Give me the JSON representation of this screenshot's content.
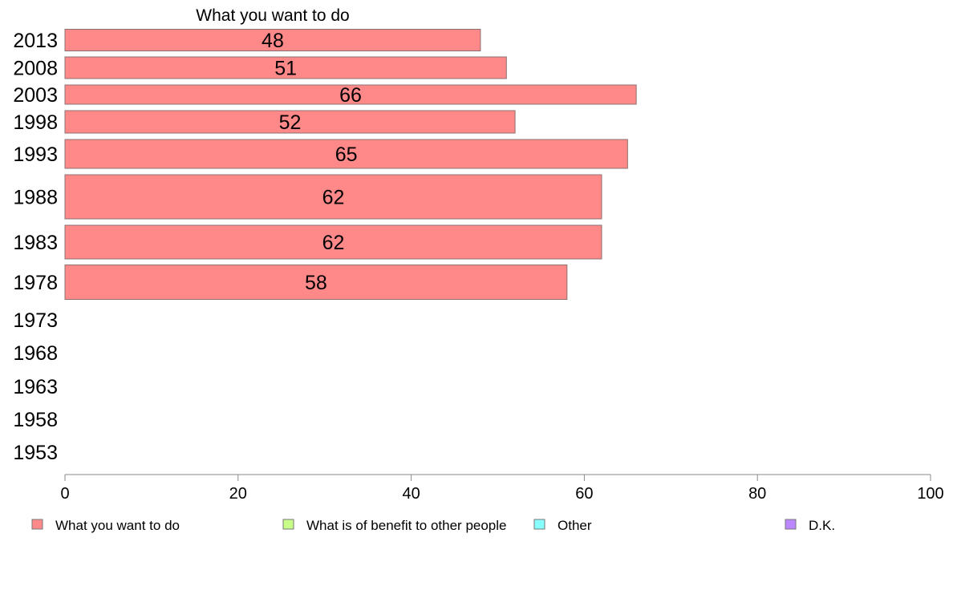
{
  "chart_data": {
    "type": "bar",
    "orientation": "horizontal",
    "title": "What you want to do",
    "categories": [
      "2013",
      "2008",
      "2003",
      "1998",
      "1993",
      "1988",
      "1983",
      "1978",
      "1973",
      "1968",
      "1963",
      "1958",
      "1953"
    ],
    "series": [
      {
        "name": "What you want to do",
        "color": "#ff8888",
        "values": [
          48,
          51,
          66,
          52,
          65,
          62,
          62,
          58,
          null,
          null,
          null,
          null,
          null
        ]
      },
      {
        "name": "What is of benefit to other people",
        "color": "#c8ff88",
        "values": [
          null,
          null,
          null,
          null,
          null,
          null,
          null,
          null,
          null,
          null,
          null,
          null,
          null
        ]
      },
      {
        "name": "Other",
        "color": "#88ffff",
        "values": [
          null,
          null,
          null,
          null,
          null,
          null,
          null,
          null,
          null,
          null,
          null,
          null,
          null
        ]
      },
      {
        "name": "D.K.",
        "color": "#bb88ff",
        "values": [
          null,
          null,
          null,
          null,
          null,
          null,
          null,
          null,
          null,
          null,
          null,
          null,
          null
        ]
      }
    ],
    "data_labels": [
      "48",
      "51",
      "66",
      "52",
      "65",
      "62",
      "62",
      "58",
      "",
      "",
      "",
      "",
      ""
    ],
    "xlim": [
      0,
      100
    ],
    "x_ticks": [
      "0",
      "20",
      "40",
      "60",
      "80",
      "100"
    ],
    "grid": false,
    "legend_position": "bottom"
  }
}
